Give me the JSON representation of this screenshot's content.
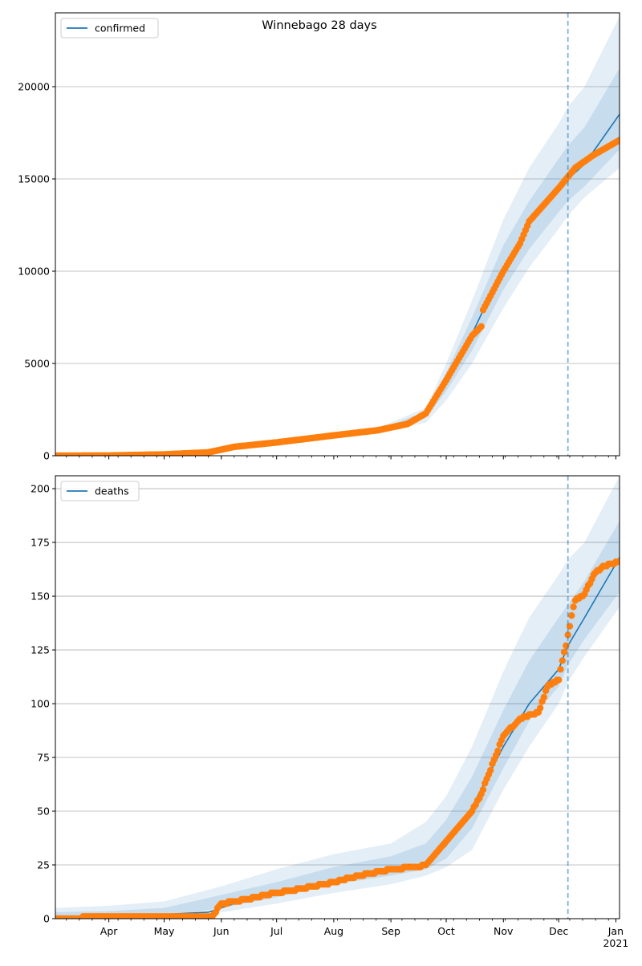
{
  "title": "Winnebago 28 days",
  "colors": {
    "model": "#1f77b4",
    "observed": "#ff7f0e",
    "band": "#1f77b4",
    "grid": "#b0b0b0",
    "forecast_line": "#1f77b4"
  },
  "x_axis": {
    "month_ticks": [
      {
        "date": "2020-04-01",
        "label": "Apr"
      },
      {
        "date": "2020-05-01",
        "label": "May"
      },
      {
        "date": "2020-06-01",
        "label": "Jun"
      },
      {
        "date": "2020-07-01",
        "label": "Jul"
      },
      {
        "date": "2020-08-01",
        "label": "Aug"
      },
      {
        "date": "2020-09-01",
        "label": "Sep"
      },
      {
        "date": "2020-10-01",
        "label": "Oct"
      },
      {
        "date": "2020-11-01",
        "label": "Nov"
      },
      {
        "date": "2020-12-01",
        "label": "Dec"
      },
      {
        "date": "2021-01-01",
        "label": "Jan"
      }
    ],
    "year_label": "2021",
    "xlim": [
      "2020-03-03",
      "2021-01-03"
    ],
    "forecast_start": "2020-12-06"
  },
  "chart_data": [
    {
      "type": "line",
      "legend": "confirmed",
      "legend_position": "upper-left",
      "grid": "y",
      "ylim": [
        0,
        24000
      ],
      "yticks": [
        0,
        5000,
        10000,
        15000,
        20000
      ],
      "ytick_labels": [
        "0",
        "5000",
        "10000",
        "15000",
        "20000"
      ],
      "model": {
        "x": [
          "2020-03-03",
          "2020-04-01",
          "2020-05-01",
          "2020-05-25",
          "2020-06-08",
          "2020-07-01",
          "2020-08-01",
          "2020-08-25",
          "2020-09-10",
          "2020-09-20",
          "2020-10-01",
          "2020-10-15",
          "2020-11-01",
          "2020-11-15",
          "2020-12-01",
          "2020-12-06",
          "2020-12-15",
          "2021-01-03"
        ],
        "y": [
          0,
          10,
          60,
          160,
          450,
          720,
          1080,
          1350,
          1700,
          2250,
          4000,
          6600,
          10200,
          12500,
          14500,
          15000,
          15800,
          18500
        ]
      },
      "bands": {
        "x": [
          "2020-03-03",
          "2020-05-25",
          "2020-08-25",
          "2020-09-20",
          "2020-10-01",
          "2020-10-15",
          "2020-11-01",
          "2020-11-15",
          "2020-12-01",
          "2020-12-06",
          "2020-12-15",
          "2021-01-03"
        ],
        "upper_outer": [
          20,
          200,
          1500,
          2600,
          5000,
          8400,
          12800,
          15600,
          18000,
          18900,
          20000,
          23800
        ],
        "lower_outer": [
          0,
          130,
          1220,
          1800,
          3000,
          5000,
          8000,
          10200,
          12300,
          13000,
          14000,
          15600
        ],
        "upper_inner": [
          10,
          175,
          1420,
          2400,
          4500,
          7500,
          11400,
          13800,
          16100,
          16800,
          17800,
          21000
        ],
        "lower_inner": [
          0,
          145,
          1280,
          2050,
          3500,
          5700,
          9000,
          11200,
          13200,
          13800,
          14600,
          16600
        ]
      },
      "observed": {
        "x": [
          "2020-03-03",
          "2020-04-01",
          "2020-05-01",
          "2020-05-25",
          "2020-06-08",
          "2020-07-01",
          "2020-08-01",
          "2020-08-25",
          "2020-09-10",
          "2020-09-20",
          "2020-10-01",
          "2020-10-15",
          "2020-10-20",
          "2020-10-21",
          "2020-11-01",
          "2020-11-10",
          "2020-11-15",
          "2020-12-01",
          "2020-12-10",
          "2020-12-20",
          "2021-01-03"
        ],
        "y": [
          0,
          10,
          70,
          180,
          480,
          720,
          1100,
          1380,
          1720,
          2300,
          4100,
          6500,
          7000,
          7900,
          10000,
          11500,
          12700,
          14500,
          15600,
          16300,
          17100
        ]
      }
    },
    {
      "type": "line",
      "legend": "deaths",
      "legend_position": "upper-left",
      "grid": "y",
      "ylim": [
        0,
        206
      ],
      "yticks": [
        0,
        25,
        50,
        75,
        100,
        125,
        150,
        175,
        200
      ],
      "ytick_labels": [
        "0",
        "25",
        "50",
        "75",
        "100",
        "125",
        "150",
        "175",
        "200"
      ],
      "model": {
        "x": [
          "2020-03-03",
          "2020-04-01",
          "2020-05-01",
          "2020-05-25",
          "2020-06-15",
          "2020-07-01",
          "2020-08-01",
          "2020-09-01",
          "2020-09-20",
          "2020-10-01",
          "2020-10-15",
          "2020-11-01",
          "2020-11-15",
          "2020-12-01",
          "2020-12-06",
          "2020-12-15",
          "2021-01-03"
        ],
        "y": [
          0,
          0.5,
          2,
          3,
          9,
          11,
          17,
          22,
          25,
          34,
          52,
          80,
          100,
          116,
          127,
          140,
          168
        ]
      },
      "bands": {
        "x": [
          "2020-03-03",
          "2020-04-01",
          "2020-05-01",
          "2020-06-01",
          "2020-07-01",
          "2020-08-01",
          "2020-09-01",
          "2020-09-20",
          "2020-10-01",
          "2020-10-15",
          "2020-11-01",
          "2020-11-15",
          "2020-12-01",
          "2020-12-06",
          "2020-12-15",
          "2021-01-03"
        ],
        "upper_outer": [
          5,
          6,
          8,
          15,
          23,
          30,
          35,
          45,
          57,
          80,
          115,
          140,
          160,
          167,
          175,
          206
        ],
        "lower_outer": [
          0,
          0,
          0,
          3,
          7,
          12,
          16,
          20,
          24,
          32,
          60,
          80,
          100,
          110,
          122,
          145
        ],
        "upper_inner": [
          3,
          3.5,
          5,
          11,
          17,
          24,
          29,
          35,
          46,
          66,
          97,
          120,
          140,
          146,
          157,
          185
        ],
        "lower_inner": [
          0,
          0,
          1,
          5,
          10,
          16,
          20,
          23,
          28,
          42,
          70,
          92,
          108,
          118,
          130,
          152
        ]
      },
      "observed": {
        "x": [
          "2020-03-03",
          "2020-04-01",
          "2020-05-01",
          "2020-05-27",
          "2020-06-01",
          "2020-06-15",
          "2020-06-25",
          "2020-07-01",
          "2020-07-15",
          "2020-08-01",
          "2020-08-15",
          "2020-09-01",
          "2020-09-15",
          "2020-09-20",
          "2020-10-01",
          "2020-10-15",
          "2020-10-20",
          "2020-11-01",
          "2020-11-10",
          "2020-11-20",
          "2020-11-25",
          "2020-12-01",
          "2020-12-03",
          "2020-12-05",
          "2020-12-08",
          "2020-12-10",
          "2020-12-15",
          "2020-12-20",
          "2020-12-25",
          "2021-01-03"
        ],
        "y": [
          0,
          1,
          1,
          1,
          7,
          9,
          11,
          12,
          14,
          17,
          20,
          23,
          24,
          25,
          36,
          50,
          58,
          85,
          93,
          96,
          108,
          111,
          120,
          127,
          141,
          148,
          151,
          160,
          164,
          166
        ]
      }
    }
  ]
}
